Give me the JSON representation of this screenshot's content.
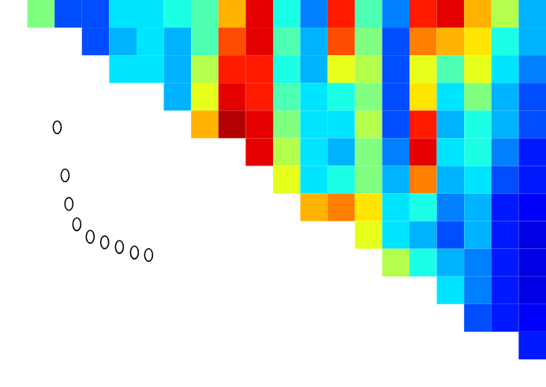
{
  "chart_data": {
    "type": "heatmap",
    "xlim": [
      0,
      20
    ],
    "ylim": [
      14,
      0
    ],
    "tick_labels": false,
    "color_range": [
      0,
      1
    ],
    "z": [
      [
        null,
        0.5,
        0.2,
        0.2,
        0.35,
        0.35,
        0.4,
        0.45,
        0.7,
        0.9,
        0.4,
        0.25,
        0.85,
        0.45,
        0.25,
        0.85,
        0.9,
        0.7,
        0.55,
        0.3
      ],
      [
        null,
        null,
        null,
        0.2,
        0.3,
        0.35,
        0.3,
        0.45,
        0.8,
        0.9,
        0.45,
        0.3,
        0.8,
        0.5,
        0.2,
        0.75,
        0.7,
        0.65,
        0.4,
        0.3
      ],
      [
        null,
        null,
        null,
        null,
        0.35,
        0.35,
        0.3,
        0.55,
        0.85,
        0.85,
        0.4,
        0.3,
        0.6,
        0.55,
        0.2,
        0.6,
        0.45,
        0.6,
        0.35,
        0.25
      ],
      [
        null,
        null,
        null,
        null,
        null,
        null,
        0.3,
        0.6,
        0.9,
        0.85,
        0.45,
        0.35,
        0.4,
        0.5,
        0.2,
        0.65,
        0.35,
        0.5,
        0.3,
        0.2
      ],
      [
        null,
        null,
        null,
        null,
        null,
        null,
        null,
        0.7,
        0.95,
        0.9,
        0.5,
        0.35,
        0.35,
        0.55,
        0.2,
        0.85,
        0.3,
        0.4,
        0.3,
        0.2
      ],
      [
        null,
        null,
        null,
        null,
        null,
        null,
        null,
        null,
        null,
        0.9,
        0.55,
        0.35,
        0.3,
        0.5,
        0.25,
        0.9,
        0.35,
        0.4,
        0.25,
        0.15
      ],
      [
        null,
        null,
        null,
        null,
        null,
        null,
        null,
        null,
        null,
        null,
        0.6,
        0.35,
        0.4,
        0.5,
        0.3,
        0.75,
        0.3,
        0.35,
        0.2,
        0.15
      ],
      [
        null,
        null,
        null,
        null,
        null,
        null,
        null,
        null,
        null,
        null,
        null,
        0.7,
        0.75,
        0.65,
        0.35,
        0.4,
        0.25,
        0.3,
        0.15,
        0.12
      ],
      [
        null,
        null,
        null,
        null,
        null,
        null,
        null,
        null,
        null,
        null,
        null,
        null,
        null,
        0.6,
        0.35,
        0.3,
        0.2,
        0.3,
        0.15,
        0.1
      ],
      [
        null,
        null,
        null,
        null,
        null,
        null,
        null,
        null,
        null,
        null,
        null,
        null,
        null,
        null,
        0.55,
        0.4,
        0.3,
        0.25,
        0.15,
        0.1
      ],
      [
        null,
        null,
        null,
        null,
        null,
        null,
        null,
        null,
        null,
        null,
        null,
        null,
        null,
        null,
        null,
        null,
        0.35,
        0.25,
        0.15,
        0.1
      ],
      [
        null,
        null,
        null,
        null,
        null,
        null,
        null,
        null,
        null,
        null,
        null,
        null,
        null,
        null,
        null,
        null,
        null,
        0.2,
        0.15,
        0.12
      ],
      [
        null,
        null,
        null,
        null,
        null,
        null,
        null,
        null,
        null,
        null,
        null,
        null,
        null,
        null,
        null,
        null,
        null,
        null,
        null,
        0.15
      ],
      [
        null,
        null,
        null,
        null,
        null,
        null,
        null,
        null,
        null,
        null,
        null,
        null,
        null,
        null,
        null,
        null,
        null,
        null,
        null,
        null
      ]
    ],
    "series": [
      {
        "type": "scatter",
        "marker": "o",
        "color": "#000000",
        "x": [
          2.08,
          2.37,
          2.51,
          2.8,
          3.29,
          3.82,
          4.36,
          4.91,
          5.43
        ],
        "y": [
          4.59,
          6.33,
          7.36,
          8.1,
          8.55,
          8.75,
          8.92,
          9.12,
          9.21
        ]
      }
    ]
  }
}
